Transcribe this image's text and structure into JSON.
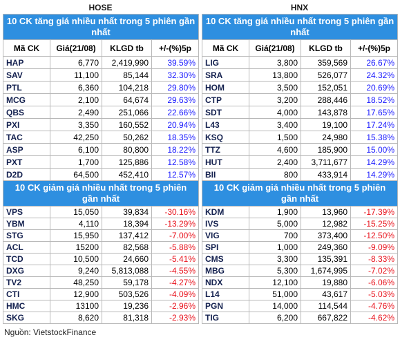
{
  "panels": [
    {
      "exchange": "HOSE",
      "header": [
        "Mã CK",
        "Giá(21/08)",
        "KLGD tb",
        "+/-(%)5p"
      ],
      "gainers": {
        "title": "10 CK tăng giá nhiều nhất trong 5 phiên gần nhất",
        "change_color": "#1a1aff",
        "rows": [
          [
            "HAP",
            "6,770",
            "2,419,990",
            "39.59%"
          ],
          [
            "SAV",
            "11,100",
            "85,144",
            "32.30%"
          ],
          [
            "PTL",
            "6,360",
            "104,218",
            "29.80%"
          ],
          [
            "MCG",
            "2,100",
            "64,674",
            "29.63%"
          ],
          [
            "QBS",
            "2,490",
            "251,066",
            "22.66%"
          ],
          [
            "PXI",
            "3,350",
            "160,552",
            "20.94%"
          ],
          [
            "TAC",
            "42,250",
            "50,262",
            "18.35%"
          ],
          [
            "ASP",
            "6,100",
            "80,800",
            "18.22%"
          ],
          [
            "PXT",
            "1,700",
            "125,886",
            "12.58%"
          ],
          [
            "D2D",
            "64,500",
            "452,410",
            "12.57%"
          ]
        ]
      },
      "losers": {
        "title": "10 CK giảm giá nhiều nhất trong 5 phiên gần nhất",
        "change_color": "#e8101a",
        "rows": [
          [
            "VPS",
            "15,050",
            "39,834",
            "-30.16%"
          ],
          [
            "YBM",
            "4,110",
            "18,394",
            "-13.29%"
          ],
          [
            "STG",
            "15,950",
            "137,412",
            "-7.00%"
          ],
          [
            "ACL",
            "15200",
            "82,568",
            "-5.88%"
          ],
          [
            "TCD",
            "10,500",
            "24,660",
            "-5.41%"
          ],
          [
            "DXG",
            "9,240",
            "5,813,088",
            "-4.55%"
          ],
          [
            "TV2",
            "48,250",
            "59,178",
            "-4.27%"
          ],
          [
            "CTI",
            "12,900",
            "503,526",
            "-4.09%"
          ],
          [
            "HMC",
            "13100",
            "19,236",
            "-2.96%"
          ],
          [
            "SKG",
            "8,620",
            "81,318",
            "-2.93%"
          ]
        ]
      }
    },
    {
      "exchange": "HNX",
      "header": [
        "Mã CK",
        "Giá(21/08)",
        "KLGD tb",
        "+/-(%)5p"
      ],
      "gainers": {
        "title": "10 CK tăng giá nhiều nhất trong 5 phiên gần nhất",
        "change_color": "#1a1aff",
        "rows": [
          [
            "LIG",
            "3,800",
            "359,569",
            "26.67%"
          ],
          [
            "SRA",
            "13,800",
            "526,077",
            "24.32%"
          ],
          [
            "HOM",
            "3,500",
            "152,051",
            "20.69%"
          ],
          [
            "CTP",
            "3,200",
            "288,446",
            "18.52%"
          ],
          [
            "SDT",
            "4,000",
            "143,878",
            "17.65%"
          ],
          [
            "L43",
            "3,400",
            "19,100",
            "17.24%"
          ],
          [
            "KSQ",
            "1,500",
            "24,980",
            "15.38%"
          ],
          [
            "TTZ",
            "4,600",
            "185,900",
            "15.00%"
          ],
          [
            "HUT",
            "2,400",
            "3,711,677",
            "14.29%"
          ],
          [
            "BII",
            "800",
            "433,914",
            "14.29%"
          ]
        ]
      },
      "losers": {
        "title": "10 CK giảm giá nhiều nhất trong 5 phiên gần nhất",
        "change_color": "#e8101a",
        "rows": [
          [
            "KDM",
            "1,900",
            "13,960",
            "-17.39%"
          ],
          [
            "IVS",
            "5,000",
            "12,982",
            "-15.25%"
          ],
          [
            "VIG",
            "700",
            "373,400",
            "-12.50%"
          ],
          [
            "SPI",
            "1,000",
            "249,360",
            "-9.09%"
          ],
          [
            "CMS",
            "3,300",
            "135,391",
            "-8.33%"
          ],
          [
            "MBG",
            "5,300",
            "1,674,995",
            "-7.02%"
          ],
          [
            "NDX",
            "12,100",
            "19,880",
            "-6.06%"
          ],
          [
            "L14",
            "51,000",
            "43,617",
            "-5.03%"
          ],
          [
            "PGN",
            "14,000",
            "114,544",
            "-4.76%"
          ],
          [
            "TIG",
            "6,200",
            "667,822",
            "-4.62%"
          ]
        ]
      }
    }
  ],
  "source": "Nguồn: VietstockFinance"
}
